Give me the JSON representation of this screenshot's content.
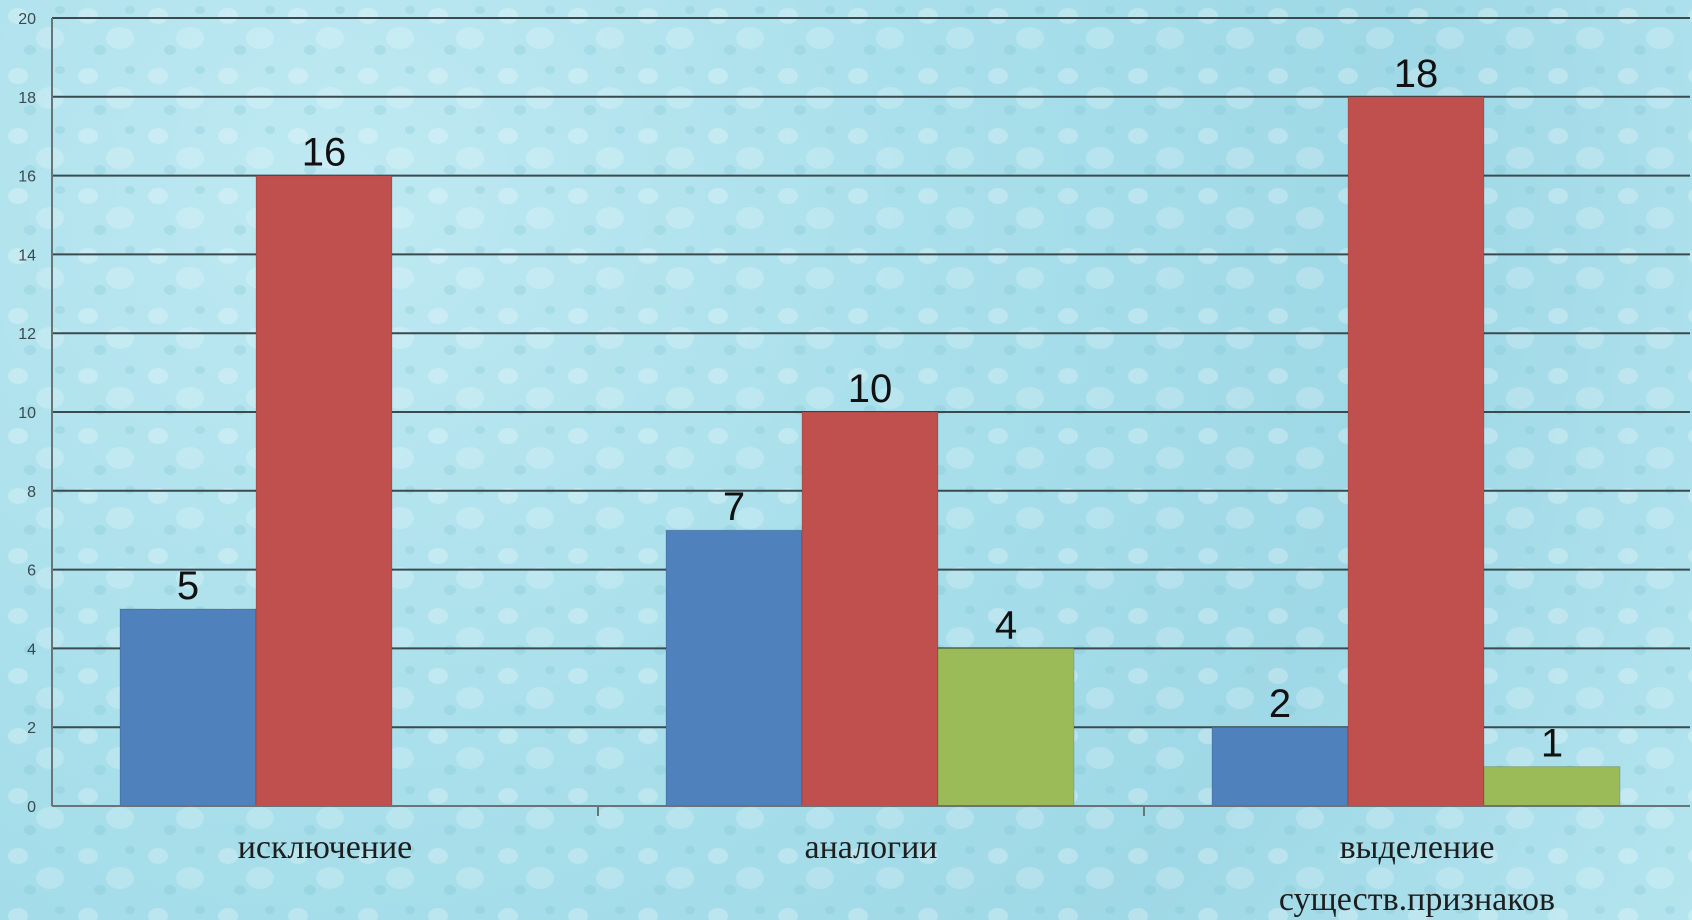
{
  "chart_data": {
    "type": "bar",
    "categories": [
      [
        "исключение"
      ],
      [
        "аналогии"
      ],
      [
        "выделение",
        "существ.признаков"
      ]
    ],
    "series": [
      {
        "values": [
          5,
          7,
          2
        ],
        "color": "#4f81bd"
      },
      {
        "values": [
          16,
          10,
          18
        ],
        "color": "#c0504d"
      },
      {
        "values": [
          null,
          4,
          1
        ],
        "color": "#9bbb59"
      }
    ],
    "y_ticks": [
      "0",
      "2",
      "4",
      "6",
      "8",
      "10",
      "12",
      "14",
      "16",
      "18",
      "20"
    ],
    "ylim": [
      0,
      20
    ],
    "grid": true,
    "legend": "none",
    "background": "water-drops texture, light cyan"
  }
}
